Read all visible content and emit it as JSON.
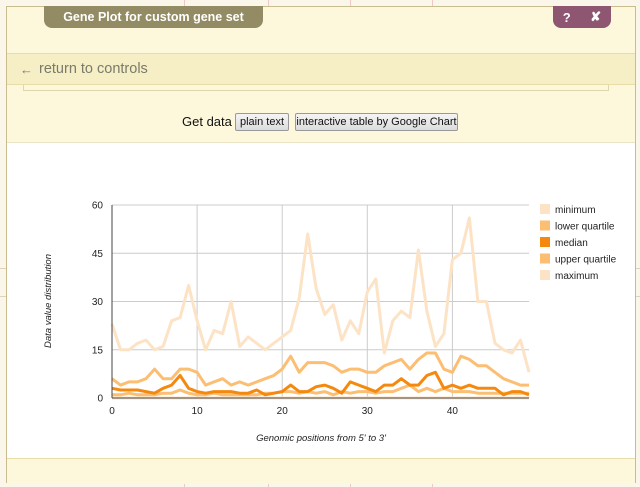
{
  "window": {
    "title": "Gene Plot for custom gene set",
    "help_label": "?",
    "close_label": "✘"
  },
  "nav": {
    "return_label": "return to controls"
  },
  "controls": {
    "get_data_label": "Get data",
    "plain_text_label": "plain text",
    "google_chart_label": "interactive table by Google Chart"
  },
  "colors": {
    "minimum": "#fde3c5",
    "lower_quartile": "#fbbe72",
    "median": "#f5890f",
    "upper_quartile": "#fbbe72",
    "maximum": "#fde3c5"
  },
  "chart_data": {
    "type": "line",
    "title": "",
    "xlabel": "Genomic positions from 5' to 3'",
    "ylabel": "Data value distribution",
    "xlim": [
      0,
      49
    ],
    "ylim": [
      0,
      60
    ],
    "xticks": [
      "0",
      "10",
      "20",
      "30",
      "40"
    ],
    "yticks": [
      "0",
      "15",
      "30",
      "45",
      "60"
    ],
    "grid": true,
    "legend_position": "right",
    "x": [
      0,
      1,
      2,
      3,
      4,
      5,
      6,
      7,
      8,
      9,
      10,
      11,
      12,
      13,
      14,
      15,
      16,
      17,
      18,
      19,
      20,
      21,
      22,
      23,
      24,
      25,
      26,
      27,
      28,
      29,
      30,
      31,
      32,
      33,
      34,
      35,
      36,
      37,
      38,
      39,
      40,
      41,
      42,
      43,
      44,
      45,
      46,
      47,
      48,
      49
    ],
    "series": [
      {
        "name": "minimum",
        "values": [
          0,
          0,
          0,
          0,
          0,
          0,
          0,
          0,
          0,
          0,
          0,
          0,
          0,
          0,
          0,
          0,
          0,
          0,
          0,
          0,
          0,
          0,
          0,
          0,
          0,
          0,
          0,
          0,
          0,
          0,
          0,
          0,
          0,
          0,
          0,
          0,
          0,
          0,
          0,
          0,
          0,
          0,
          0,
          0,
          0,
          0,
          0,
          0,
          0,
          0
        ]
      },
      {
        "name": "lower quartile",
        "values": [
          1,
          1,
          1.5,
          1,
          1,
          1,
          1.5,
          1.5,
          2.5,
          1.5,
          1,
          1,
          1.5,
          1,
          1,
          1,
          1,
          1,
          1.5,
          1.5,
          2,
          2,
          1.5,
          2,
          1.5,
          2,
          1,
          2,
          1.5,
          2,
          2,
          1.5,
          2,
          2,
          3,
          4,
          2,
          3,
          2,
          3,
          2,
          2,
          2,
          1.5,
          1.5,
          1.5,
          1.5,
          1.5,
          1.5,
          1.5
        ]
      },
      {
        "name": "median",
        "values": [
          3,
          2.5,
          2.5,
          2.5,
          2,
          1.5,
          3,
          4,
          7,
          3,
          2,
          1.5,
          2,
          2,
          2,
          1.5,
          1.5,
          2.5,
          1,
          1.5,
          2,
          4,
          2,
          2,
          3.5,
          4,
          3,
          1.5,
          5,
          4,
          3,
          2,
          4,
          4,
          6,
          4,
          4,
          7,
          8,
          3,
          4,
          3,
          4,
          3,
          3,
          3,
          1,
          2,
          2,
          1
        ]
      },
      {
        "name": "upper quartile",
        "values": [
          6,
          4,
          5,
          5,
          6,
          9,
          6,
          6,
          9,
          9,
          8,
          4,
          5,
          6,
          4,
          5,
          4,
          5,
          6,
          7,
          9,
          13,
          8,
          11,
          11,
          11,
          10,
          8,
          9,
          9,
          8,
          8,
          10,
          11,
          12,
          9,
          12,
          14,
          14,
          9,
          8,
          13,
          12,
          10,
          10,
          8,
          6,
          5,
          4,
          4
        ]
      },
      {
        "name": "maximum",
        "values": [
          23,
          15,
          15,
          17,
          18,
          15,
          16,
          24,
          25,
          35,
          24,
          15,
          21,
          20,
          30,
          16,
          19,
          17,
          15,
          17,
          19,
          21,
          31,
          51,
          34,
          26,
          29,
          18,
          24,
          20,
          33,
          37,
          14,
          24,
          27,
          25,
          46,
          27,
          16,
          20,
          43,
          45,
          56,
          30,
          30,
          17,
          15,
          14,
          18,
          8
        ]
      }
    ]
  }
}
